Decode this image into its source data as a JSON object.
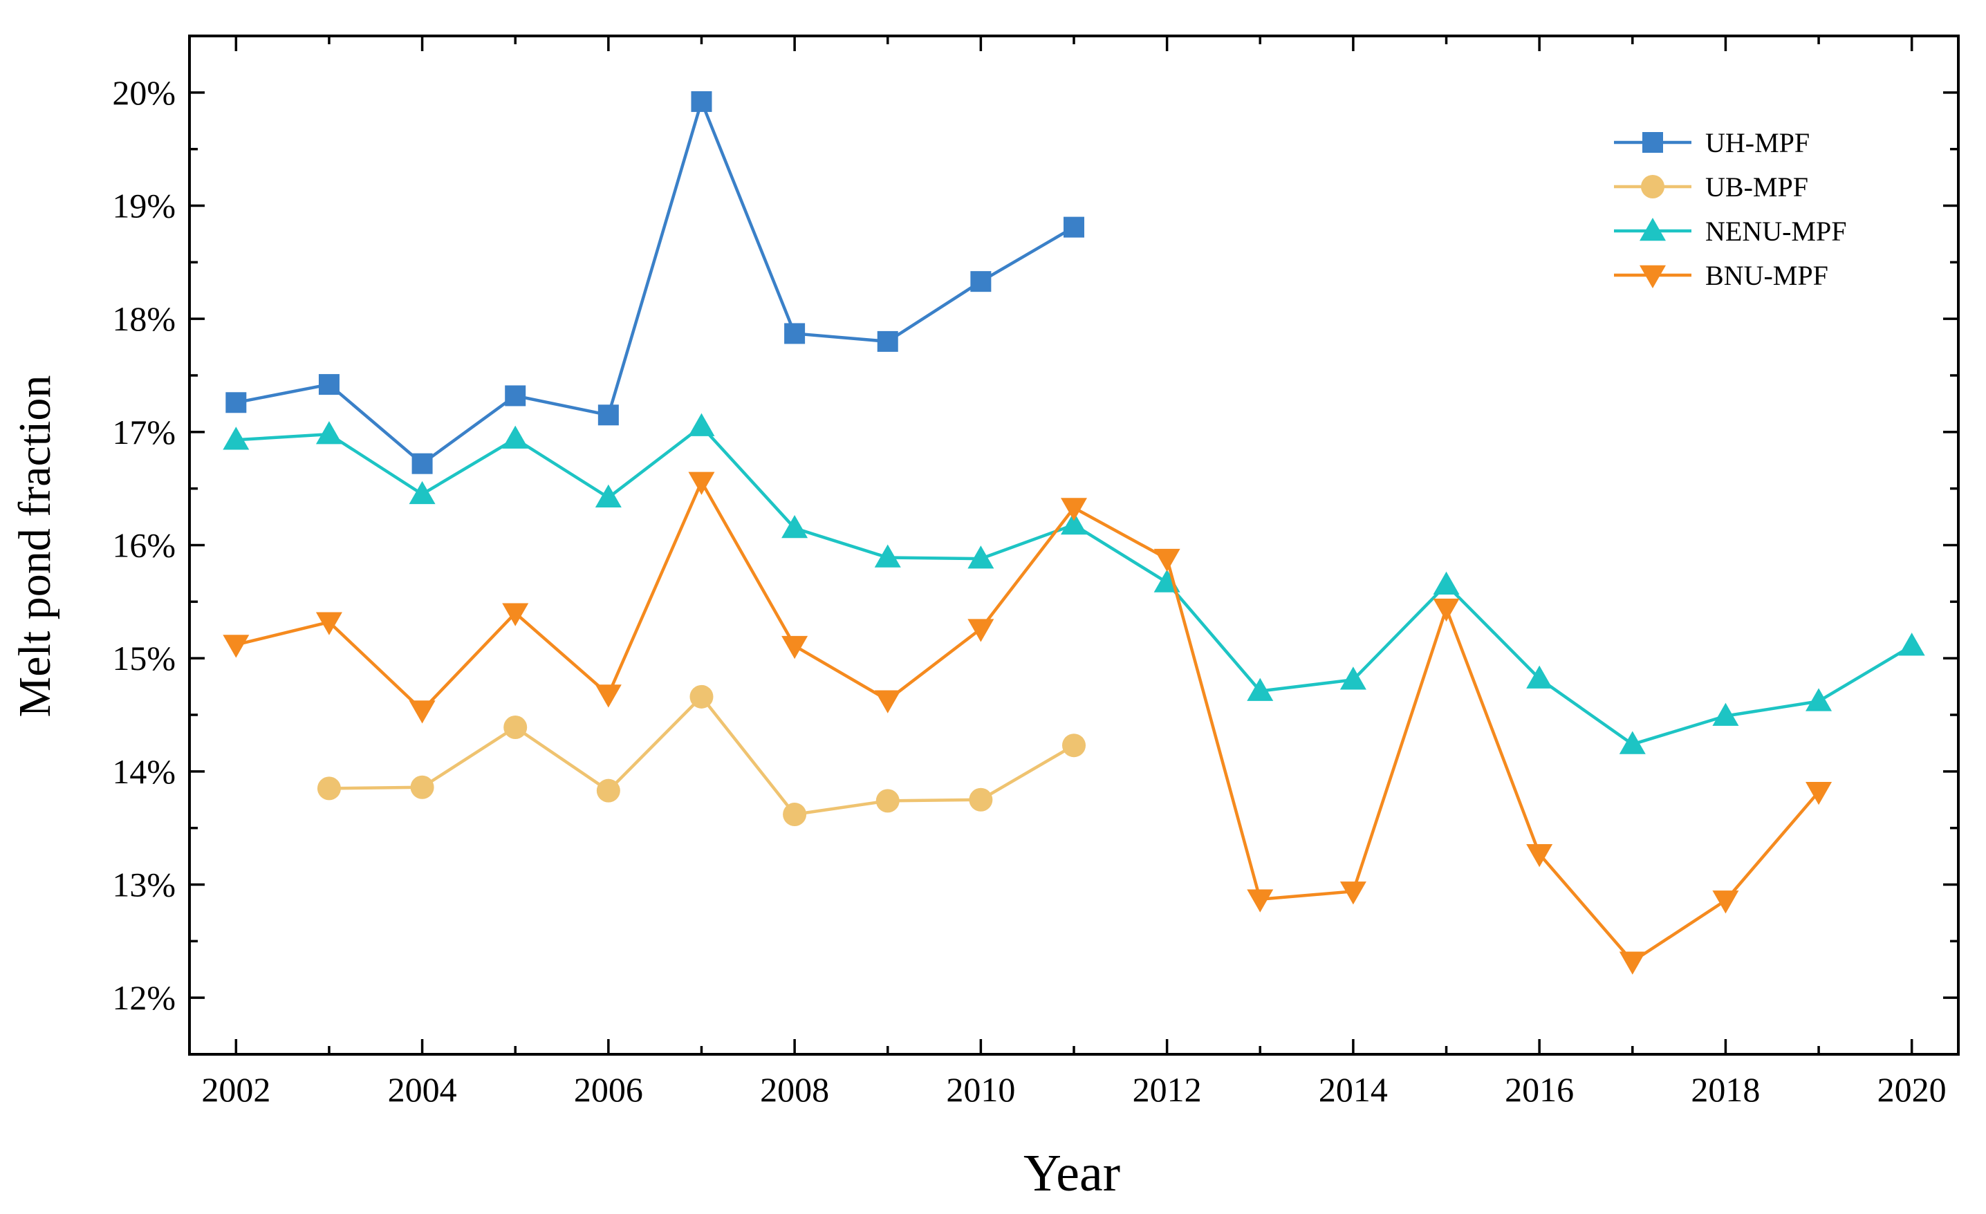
{
  "chart_data": {
    "type": "line",
    "title": "",
    "xlabel": "Year",
    "ylabel": "Melt pond fraction",
    "xlim": [
      2001.5,
      2020.5
    ],
    "ylim": [
      11.5,
      20.5
    ],
    "x_ticks": [
      2002,
      2004,
      2006,
      2008,
      2010,
      2012,
      2014,
      2016,
      2018,
      2020
    ],
    "x_tick_labels": [
      "2002",
      "2004",
      "2006",
      "2008",
      "2010",
      "2012",
      "2014",
      "2016",
      "2018",
      "2020"
    ],
    "y_ticks": [
      12,
      13,
      14,
      15,
      16,
      17,
      18,
      19,
      20
    ],
    "y_tick_labels": [
      "12%",
      "13%",
      "14%",
      "15%",
      "16%",
      "17%",
      "18%",
      "19%",
      "20%"
    ],
    "grid": false,
    "legend_position": "top-right",
    "series": [
      {
        "name": "UH-MPF",
        "color": "#3a80c8",
        "marker": "square",
        "x": [
          2002,
          2003,
          2004,
          2005,
          2006,
          2007,
          2008,
          2009,
          2010,
          2011
        ],
        "values": [
          17.26,
          17.42,
          16.72,
          17.32,
          17.15,
          19.92,
          17.87,
          17.8,
          18.33,
          18.81
        ]
      },
      {
        "name": "UB-MPF",
        "color": "#efc370",
        "marker": "circle",
        "x": [
          2003,
          2004,
          2005,
          2006,
          2007,
          2008,
          2009,
          2010,
          2011
        ],
        "values": [
          13.85,
          13.86,
          14.39,
          13.83,
          14.66,
          13.62,
          13.74,
          13.75,
          14.23
        ]
      },
      {
        "name": "NENU-MPF",
        "color": "#1dc4c4",
        "marker": "triangle-up",
        "x": [
          2002,
          2003,
          2004,
          2005,
          2006,
          2007,
          2008,
          2009,
          2010,
          2011,
          2012,
          2013,
          2014,
          2015,
          2016,
          2017,
          2018,
          2019,
          2020
        ],
        "values": [
          16.93,
          16.98,
          16.45,
          16.94,
          16.42,
          17.05,
          16.15,
          15.89,
          15.88,
          16.18,
          15.67,
          14.71,
          14.81,
          15.65,
          14.82,
          14.24,
          14.49,
          14.62,
          15.11
        ]
      },
      {
        "name": "BNU-MPF",
        "color": "#f58a1e",
        "marker": "triangle-down",
        "x": [
          2002,
          2003,
          2004,
          2005,
          2006,
          2007,
          2008,
          2009,
          2010,
          2011,
          2012,
          2013,
          2014,
          2015,
          2016,
          2017,
          2018,
          2019
        ],
        "values": [
          15.12,
          15.32,
          14.54,
          15.4,
          14.68,
          16.56,
          15.11,
          14.63,
          15.26,
          16.33,
          15.88,
          12.87,
          12.94,
          15.44,
          13.27,
          12.32,
          12.86,
          13.82
        ]
      }
    ]
  }
}
